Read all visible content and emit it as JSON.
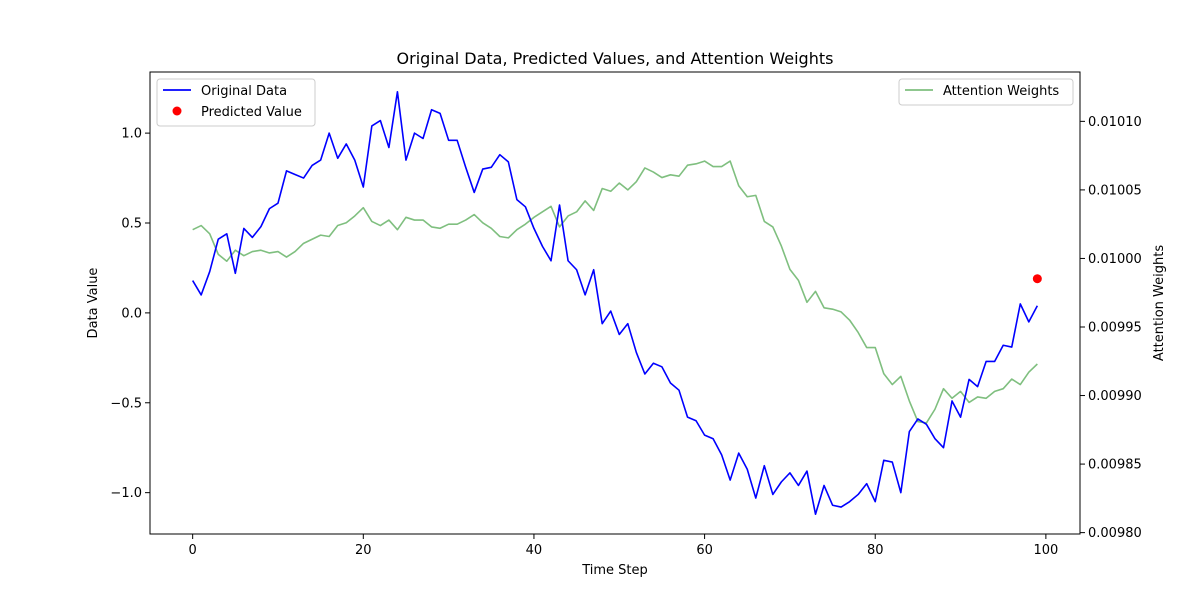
{
  "chart_data": {
    "type": "line",
    "title": "Original Data, Predicted Values, and Attention Weights",
    "xlabel": "Time Step",
    "ylabel": "Data Value",
    "y2label": "Attention Weights",
    "xlim": [
      -5,
      104
    ],
    "ylim": [
      -1.23,
      1.34
    ],
    "y2lim": [
      0.009799,
      0.010136
    ],
    "xticks": [
      0,
      20,
      40,
      60,
      80,
      100
    ],
    "yticks": [
      -1.0,
      -0.5,
      0.0,
      0.5,
      1.0
    ],
    "y2ticks": [
      0.0098,
      0.00985,
      0.0099,
      0.00995,
      0.01,
      0.01005,
      0.0101
    ],
    "xtick_labels": [
      "0",
      "20",
      "40",
      "60",
      "80",
      "100"
    ],
    "ytick_labels": [
      "−1.0",
      "−0.5",
      "0.0",
      "0.5",
      "1.0"
    ],
    "y2tick_labels": [
      "0.00980",
      "0.00985",
      "0.00990",
      "0.00995",
      "0.01000",
      "0.01005",
      "0.01010"
    ],
    "grid": false,
    "legend_left": {
      "placement": "upper-left",
      "entries": [
        {
          "label": "Original Data",
          "marker": "line",
          "color": "#0000ff"
        },
        {
          "label": "Predicted Value",
          "marker": "dot",
          "color": "#ff0000"
        }
      ]
    },
    "legend_right": {
      "placement": "upper-right",
      "entries": [
        {
          "label": "Attention Weights",
          "marker": "line",
          "color": "#7fbf7f"
        }
      ]
    },
    "series": [
      {
        "name": "Original Data",
        "axis": "left",
        "color": "#0000ff",
        "x_start": 0,
        "values": [
          0.18,
          0.1,
          0.23,
          0.41,
          0.44,
          0.22,
          0.47,
          0.42,
          0.48,
          0.58,
          0.61,
          0.79,
          0.77,
          0.75,
          0.82,
          0.85,
          1.0,
          0.86,
          0.94,
          0.85,
          0.7,
          1.04,
          1.07,
          0.92,
          1.23,
          0.85,
          1.0,
          0.97,
          1.13,
          1.11,
          0.96,
          0.96,
          0.81,
          0.67,
          0.8,
          0.81,
          0.88,
          0.84,
          0.63,
          0.59,
          0.47,
          0.37,
          0.29,
          0.6,
          0.29,
          0.24,
          0.1,
          0.24,
          -0.06,
          0.01,
          -0.12,
          -0.06,
          -0.22,
          -0.34,
          -0.28,
          -0.3,
          -0.39,
          -0.43,
          -0.58,
          -0.6,
          -0.68,
          -0.7,
          -0.79,
          -0.93,
          -0.78,
          -0.87,
          -1.03,
          -0.85,
          -1.01,
          -0.94,
          -0.89,
          -0.96,
          -0.88,
          -1.12,
          -0.96,
          -1.07,
          -1.08,
          -1.05,
          -1.01,
          -0.95,
          -1.05,
          -0.82,
          -0.83,
          -1.0,
          -0.66,
          -0.59,
          -0.62,
          -0.7,
          -0.75,
          -0.49,
          -0.58,
          -0.37,
          -0.41,
          -0.27,
          -0.27,
          -0.18,
          -0.19,
          0.05,
          -0.05,
          0.04
        ]
      },
      {
        "name": "Attention Weights",
        "axis": "right",
        "color": "#7fbf7f",
        "x_start": 0,
        "values": [
          0.010021,
          0.010024,
          0.010018,
          0.010003,
          0.009998,
          0.010006,
          0.010002,
          0.010005,
          0.010006,
          0.010004,
          0.010005,
          0.010001,
          0.010005,
          0.010011,
          0.010014,
          0.010017,
          0.010016,
          0.010024,
          0.010026,
          0.010031,
          0.010037,
          0.010027,
          0.010024,
          0.010028,
          0.010021,
          0.01003,
          0.010028,
          0.010028,
          0.010023,
          0.010022,
          0.010025,
          0.010025,
          0.010028,
          0.010032,
          0.010026,
          0.010022,
          0.010016,
          0.010015,
          0.010021,
          0.010025,
          0.01003,
          0.010034,
          0.010038,
          0.010023,
          0.010031,
          0.010034,
          0.010042,
          0.010035,
          0.010051,
          0.010049,
          0.010055,
          0.01005,
          0.010056,
          0.010066,
          0.010063,
          0.010059,
          0.010061,
          0.01006,
          0.010068,
          0.010069,
          0.010071,
          0.010067,
          0.010067,
          0.010071,
          0.010053,
          0.010045,
          0.010046,
          0.010027,
          0.010023,
          0.010009,
          0.009992,
          0.009984,
          0.009968,
          0.009976,
          0.009964,
          0.009963,
          0.009961,
          0.009955,
          0.009946,
          0.009935,
          0.009935,
          0.009916,
          0.009908,
          0.009914,
          0.009896,
          0.009881,
          0.00988,
          0.00989,
          0.009905,
          0.009898,
          0.009903,
          0.009895,
          0.009899,
          0.009898,
          0.009903,
          0.009905,
          0.009912,
          0.009908,
          0.009917,
          0.009923
        ]
      },
      {
        "name": "Predicted Value",
        "axis": "left",
        "type": "scatter",
        "color": "#ff0000",
        "points": [
          {
            "x": 99,
            "y": 0.19
          }
        ]
      }
    ]
  }
}
